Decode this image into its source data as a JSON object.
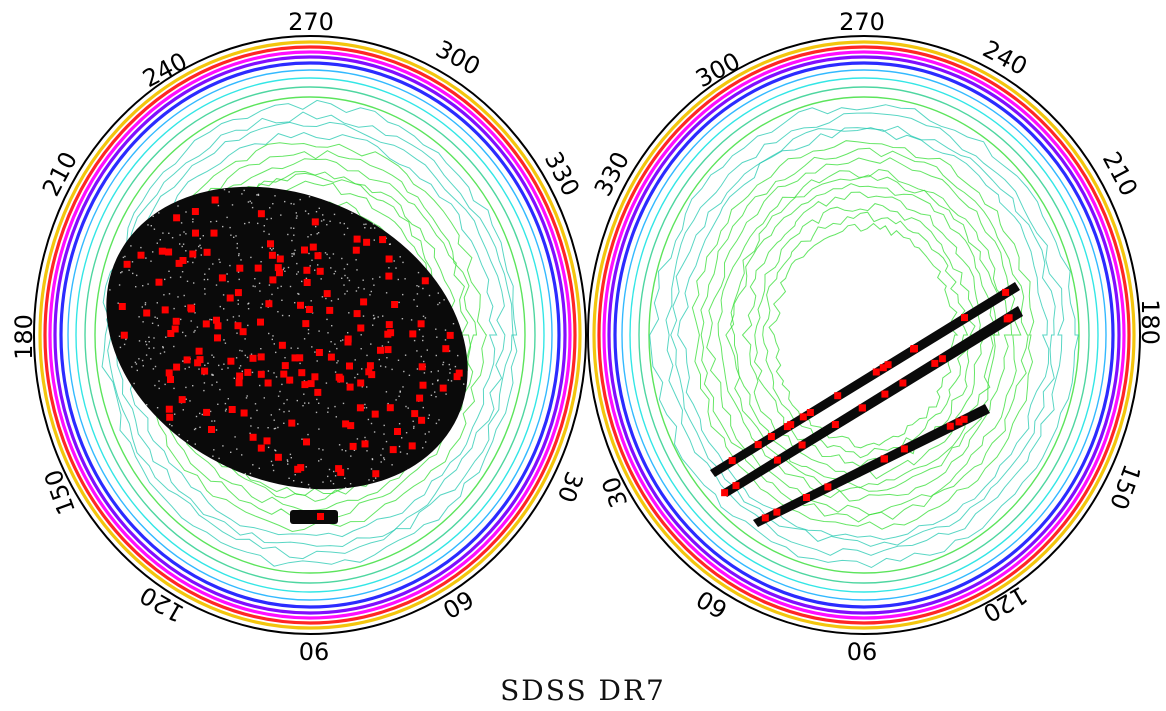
{
  "title": "SDSS DR7",
  "colors": {
    "rings_outer_to_inner": [
      "#f2c200",
      "#ff1a1a",
      "#ff00ff",
      "#7a00ff",
      "#2020ff",
      "#00a8ff",
      "#00e0e0",
      "#22cc88",
      "#33dd33"
    ],
    "sample_points": "#000000",
    "highlighted_points": "#ff0000",
    "outline": "#000000"
  },
  "maps": [
    {
      "hemisphere": "north",
      "lon_labels": [
        "270",
        "240",
        "300",
        "210",
        "330",
        "180",
        "150",
        "30",
        "120",
        "60",
        "06"
      ]
    },
    {
      "hemisphere": "south",
      "lon_labels": [
        "270",
        "300",
        "240",
        "330",
        "210",
        "180",
        "30",
        "150",
        "60",
        "120",
        "06"
      ]
    }
  ]
}
